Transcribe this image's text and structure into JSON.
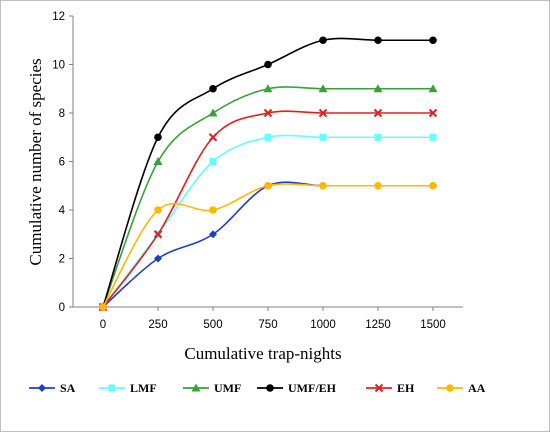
{
  "chart_data": {
    "type": "line",
    "title": "",
    "xlabel": "Cumulative trap-nights",
    "ylabel": "Cumulative number of species",
    "x": [
      0,
      250,
      500,
      750,
      1000,
      1250,
      1500
    ],
    "x_tick_labels": [
      "0",
      "250",
      "500",
      "750",
      "1000",
      "1250",
      "1500"
    ],
    "y_tick_labels": [
      "0",
      "2",
      "4",
      "6",
      "8",
      "10",
      "12"
    ],
    "ylim": [
      0,
      12
    ],
    "grid": false,
    "legend_position": "bottom",
    "smooth": true,
    "series": [
      {
        "name": "SA",
        "color": "#1f3fbf",
        "marker": "diamond",
        "values": [
          0,
          2,
          3,
          5,
          5,
          5,
          5
        ]
      },
      {
        "name": "LMF",
        "color": "#66ffff",
        "marker": "square",
        "values": [
          0,
          3,
          6,
          7,
          7,
          7,
          7
        ]
      },
      {
        "name": "UMF",
        "color": "#3aa03a",
        "marker": "triangle",
        "values": [
          0,
          6,
          8,
          9,
          9,
          9,
          9
        ]
      },
      {
        "name": "UMF/EH",
        "color": "#000000",
        "marker": "circle",
        "values": [
          0,
          7,
          9,
          10,
          11,
          11,
          11
        ]
      },
      {
        "name": "EH",
        "color": "#e02020",
        "marker": "x",
        "values": [
          0,
          3,
          7,
          8,
          8,
          8,
          8
        ]
      },
      {
        "name": "AA",
        "color": "#ffb800",
        "marker": "circle",
        "values": [
          0,
          4,
          4,
          5,
          5,
          5,
          5
        ]
      }
    ]
  }
}
